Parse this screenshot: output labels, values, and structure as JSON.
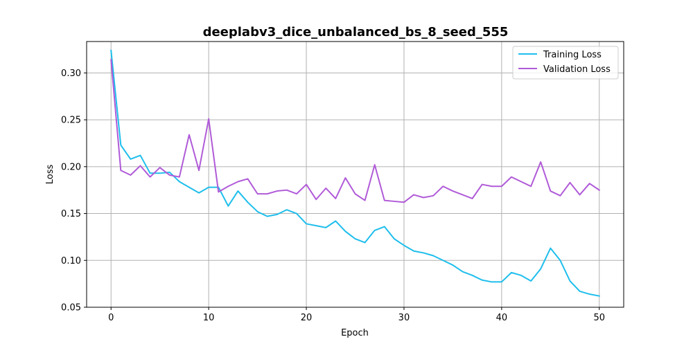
{
  "chart_data": {
    "type": "line",
    "title": "deeplabv3_dice_unbalanced_bs_8_seed_555",
    "xlabel": "Epoch",
    "ylabel": "Loss",
    "xlim": [
      -2.5,
      52.5
    ],
    "ylim": [
      0.05,
      0.3335
    ],
    "x_ticks": [
      0,
      10,
      20,
      30,
      40,
      50
    ],
    "y_ticks": [
      0.05,
      0.1,
      0.15,
      0.2,
      0.25,
      0.3
    ],
    "y_tick_labels": [
      "0.05",
      "0.10",
      "0.15",
      "0.20",
      "0.25",
      "0.30"
    ],
    "grid": true,
    "legend_position": "upper-right",
    "x": [
      0,
      1,
      2,
      3,
      4,
      5,
      6,
      7,
      8,
      9,
      10,
      11,
      12,
      13,
      14,
      15,
      16,
      17,
      18,
      19,
      20,
      21,
      22,
      23,
      24,
      25,
      26,
      27,
      28,
      29,
      30,
      31,
      32,
      33,
      34,
      35,
      36,
      37,
      38,
      39,
      40,
      41,
      42,
      43,
      44,
      45,
      46,
      47,
      48,
      49,
      50
    ],
    "series": [
      {
        "name": "Training Loss",
        "color": "#1ebeec",
        "values": [
          0.324,
          0.223,
          0.208,
          0.212,
          0.193,
          0.193,
          0.194,
          0.184,
          0.178,
          0.172,
          0.178,
          0.178,
          0.158,
          0.174,
          0.162,
          0.152,
          0.147,
          0.149,
          0.154,
          0.15,
          0.139,
          0.137,
          0.135,
          0.142,
          0.131,
          0.123,
          0.119,
          0.132,
          0.136,
          0.123,
          0.116,
          0.11,
          0.108,
          0.105,
          0.1,
          0.095,
          0.088,
          0.084,
          0.079,
          0.077,
          0.077,
          0.087,
          0.084,
          0.078,
          0.091,
          0.113,
          0.1,
          0.078,
          0.067,
          0.064,
          0.062
        ]
      },
      {
        "name": "Validation Loss",
        "color": "#b05ad8",
        "values": [
          0.314,
          0.196,
          0.191,
          0.201,
          0.189,
          0.199,
          0.191,
          0.189,
          0.234,
          0.196,
          0.251,
          0.173,
          0.179,
          0.184,
          0.187,
          0.171,
          0.171,
          0.174,
          0.175,
          0.171,
          0.181,
          0.165,
          0.177,
          0.166,
          0.188,
          0.171,
          0.164,
          0.202,
          0.164,
          0.163,
          0.162,
          0.17,
          0.167,
          0.169,
          0.179,
          0.174,
          0.17,
          0.166,
          0.181,
          0.179,
          0.179,
          0.189,
          0.184,
          0.179,
          0.205,
          0.174,
          0.169,
          0.183,
          0.17,
          0.182,
          0.175
        ]
      }
    ]
  }
}
